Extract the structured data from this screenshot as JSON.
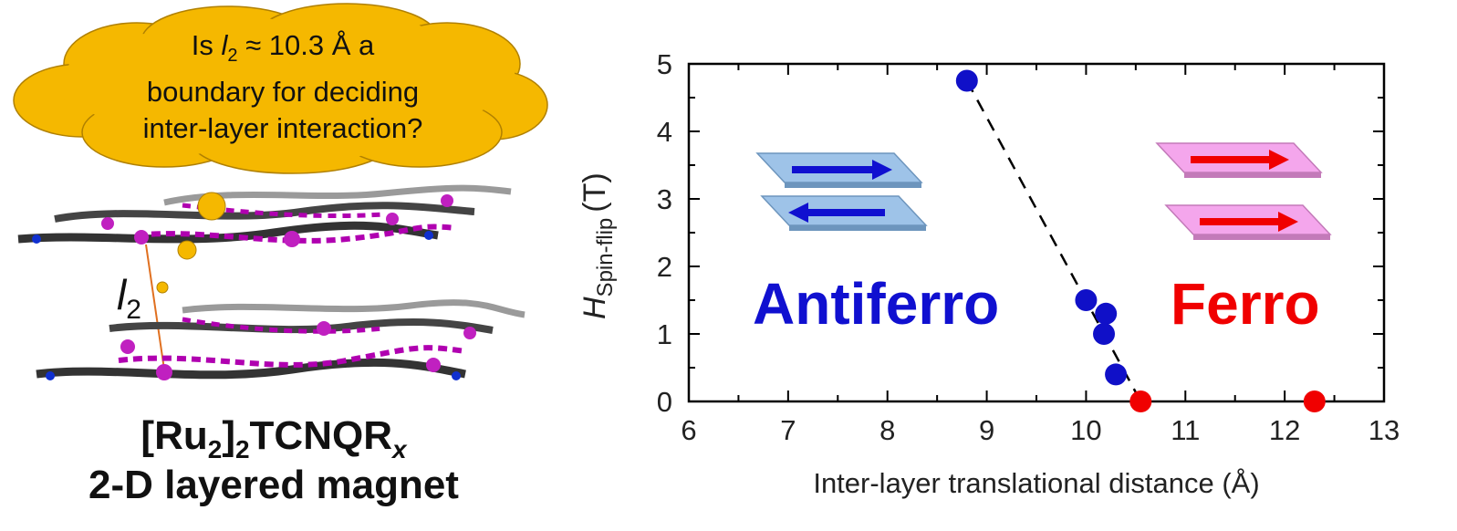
{
  "cloud": {
    "line1_prefix": "Is ",
    "line1_var": "l",
    "line1_sub": "2",
    "line1_suffix": " ≈ 10.3 Å a",
    "line2": "boundary for deciding",
    "line3": "inter-layer interaction?",
    "color": "#f5b800"
  },
  "structure_label": {
    "var": "l",
    "sub": "2"
  },
  "caption": {
    "formula_a": "[Ru",
    "formula_sub1": "2",
    "formula_b": "]",
    "formula_sub2": "2",
    "formula_c": "TCNQR",
    "formula_sub3": "x",
    "line2": "2-D layered magnet"
  },
  "chart_data": {
    "type": "scatter",
    "xlabel": "Inter-layer translational distance (Å)",
    "ylabel_main": "H",
    "ylabel_sub": "Spin-flip",
    "ylabel_unit": "(T)",
    "xlim": [
      6,
      13
    ],
    "ylim": [
      0,
      5
    ],
    "xticks": [
      6,
      7,
      8,
      9,
      10,
      11,
      12,
      13
    ],
    "yticks": [
      0,
      1,
      2,
      3,
      4,
      5
    ],
    "series": [
      {
        "color": "#1010c8",
        "points": [
          [
            8.8,
            4.75
          ],
          [
            10.0,
            1.5
          ],
          [
            10.2,
            1.3
          ],
          [
            10.18,
            1.0
          ],
          [
            10.3,
            0.4
          ]
        ]
      },
      {
        "color": "#f00000",
        "points": [
          [
            10.55,
            0.0
          ],
          [
            12.3,
            0.0
          ]
        ]
      }
    ],
    "trend_line": [
      [
        8.8,
        4.75
      ],
      [
        10.55,
        0.0
      ]
    ],
    "regions": [
      {
        "label": "Antiferro",
        "color": "#1010d0"
      },
      {
        "label": "Ferro",
        "color": "#f00000"
      }
    ]
  }
}
